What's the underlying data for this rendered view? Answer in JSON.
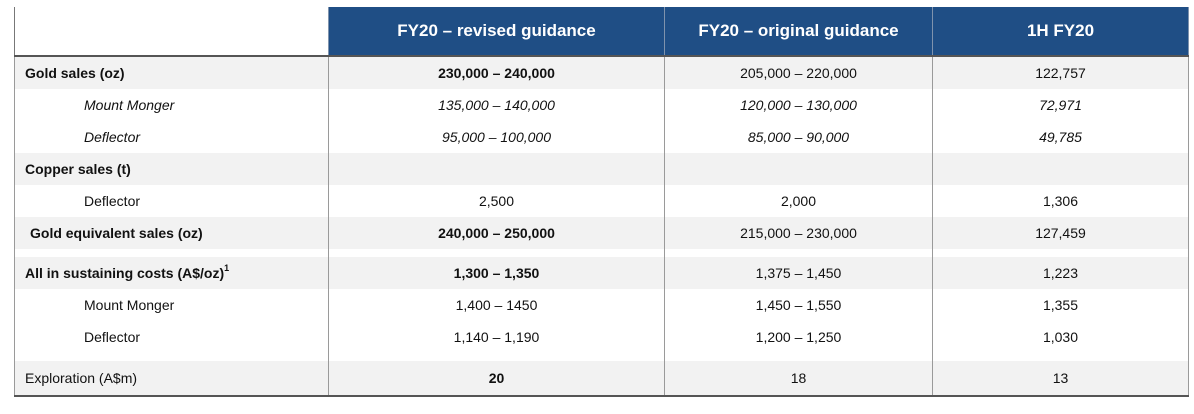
{
  "headers": [
    "",
    "FY20 – revised guidance",
    "FY20 – original guidance",
    "1H FY20"
  ],
  "rows": {
    "gold_sales": {
      "label": "Gold sales (oz)",
      "v": [
        "230,000 – 240,000",
        "205,000 – 220,000",
        "122,757"
      ]
    },
    "gold_mm": {
      "label": "Mount Monger",
      "v": [
        "135,000 – 140,000",
        "120,000 – 130,000",
        "72,971"
      ]
    },
    "gold_def": {
      "label": "Deflector",
      "v": [
        "95,000 – 100,000",
        "85,000 – 90,000",
        "49,785"
      ]
    },
    "copper": {
      "label": "Copper sales (t)",
      "v": [
        "",
        "",
        ""
      ]
    },
    "copper_def": {
      "label": "Deflector",
      "v": [
        "2,500",
        "2,000",
        "1,306"
      ]
    },
    "gold_eq": {
      "label": "Gold equivalent sales (oz)",
      "v": [
        "240,000 – 250,000",
        "215,000 – 230,000",
        "127,459"
      ]
    },
    "aisc": {
      "label": "All in sustaining costs (A$/oz)",
      "sup": "1",
      "v": [
        "1,300 – 1,350",
        "1,375 – 1,450",
        "1,223"
      ]
    },
    "aisc_mm": {
      "label": "Mount Monger",
      "v": [
        "1,400 – 1450",
        "1,450 – 1,550",
        "1,355"
      ]
    },
    "aisc_def": {
      "label": "Deflector",
      "v": [
        "1,140 – 1,190",
        "1,200 – 1,250",
        "1,030"
      ]
    },
    "exploration": {
      "label": "Exploration (A$m)",
      "v": [
        "20",
        "18",
        "13"
      ]
    }
  }
}
